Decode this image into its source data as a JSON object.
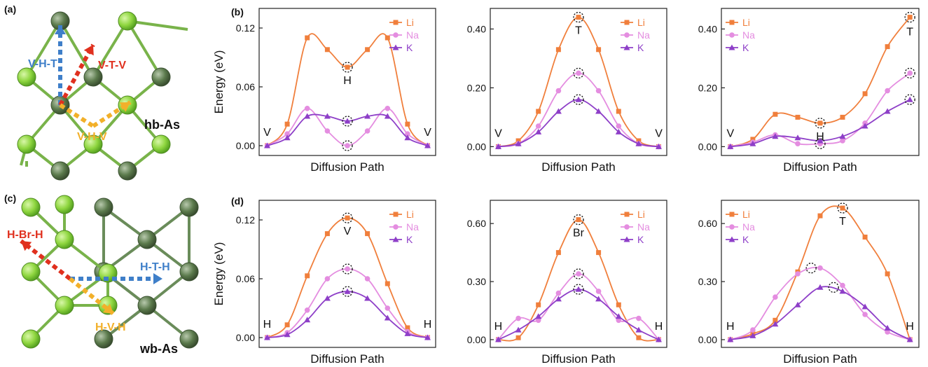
{
  "figure": {
    "panel_letters": [
      "(a)",
      "(b)",
      "(c)",
      "(d)"
    ],
    "structures": [
      {
        "name": "hb-As",
        "paths": [
          "V-H-T",
          "V-T-V",
          "V-H-V"
        ]
      },
      {
        "name": "wb-As",
        "paths": [
          "H-Br-H",
          "H-T-H",
          "H-V-H"
        ]
      }
    ]
  },
  "colors": {
    "Li": "#f07f3c",
    "Na": "#e48de0",
    "K": "#8e3fc8",
    "path_blue": "#3f7fc9",
    "path_red": "#e0301e",
    "path_yellow": "#f2b02a",
    "atom_light": "#8fd640",
    "atom_dark": "#5b7a4c"
  },
  "chart_data": [
    {
      "type": "line",
      "panel": "(b)",
      "xlabel": "Diffusion Path",
      "ylabel": "Energy (eV)",
      "ylim": [
        -0.01,
        0.14
      ],
      "yticks": [
        "0.00",
        "0.06",
        "0.12"
      ],
      "ytick_values": [
        0,
        0.06,
        0.12
      ],
      "legend": [
        "Li",
        "Na",
        "K"
      ],
      "legend_position": "top-right",
      "x": [
        0,
        1,
        2,
        3,
        4,
        5,
        6,
        7,
        8
      ],
      "series": [
        {
          "name": "Li",
          "values": [
            0.0,
            0.022,
            0.11,
            0.098,
            0.08,
            0.098,
            0.11,
            0.022,
            0.0
          ]
        },
        {
          "name": "Na",
          "values": [
            0.0,
            0.012,
            0.038,
            0.015,
            0.0,
            0.015,
            0.038,
            0.012,
            0.0
          ]
        },
        {
          "name": "K",
          "values": [
            0.0,
            0.008,
            0.03,
            0.03,
            0.025,
            0.03,
            0.03,
            0.008,
            0.0
          ]
        }
      ],
      "annotations": [
        {
          "text": "V",
          "x": 0,
          "y": 0.0
        },
        {
          "text": "H",
          "x": 4,
          "y": 0.08
        },
        {
          "text": "V",
          "x": 8,
          "y": 0.0
        }
      ],
      "circles": [
        {
          "x": 4,
          "y": 0.08
        },
        {
          "x": 4,
          "y": 0.025
        },
        {
          "x": 4,
          "y": 0.0
        }
      ]
    },
    {
      "type": "line",
      "panel": "b-middle",
      "xlabel": "Diffusion Path",
      "ylabel": "",
      "ylim": [
        -0.03,
        0.47
      ],
      "yticks": [
        "0.00",
        "0.20",
        "0.40"
      ],
      "ytick_values": [
        0,
        0.2,
        0.4
      ],
      "legend": [
        "Li",
        "Na",
        "K"
      ],
      "legend_position": "top-right",
      "x": [
        0,
        1,
        2,
        3,
        4,
        5,
        6,
        7,
        8
      ],
      "series": [
        {
          "name": "Li",
          "values": [
            0.0,
            0.02,
            0.12,
            0.33,
            0.44,
            0.33,
            0.12,
            0.02,
            0.0
          ]
        },
        {
          "name": "Na",
          "values": [
            0.0,
            0.01,
            0.07,
            0.19,
            0.25,
            0.19,
            0.07,
            0.01,
            0.0
          ]
        },
        {
          "name": "K",
          "values": [
            0.0,
            0.01,
            0.05,
            0.12,
            0.16,
            0.12,
            0.05,
            0.01,
            0.0
          ]
        }
      ],
      "annotations": [
        {
          "text": "V",
          "x": 0,
          "y": 0.0
        },
        {
          "text": "T",
          "x": 4,
          "y": 0.44
        },
        {
          "text": "V",
          "x": 8,
          "y": 0.0
        }
      ],
      "circles": [
        {
          "x": 4,
          "y": 0.44
        },
        {
          "x": 4,
          "y": 0.25
        },
        {
          "x": 4,
          "y": 0.16
        }
      ]
    },
    {
      "type": "line",
      "panel": "b-right",
      "xlabel": "Diffusion Path",
      "ylabel": "",
      "ylim": [
        -0.03,
        0.47
      ],
      "yticks": [
        "0.00",
        "0.20",
        "0.40"
      ],
      "ytick_values": [
        0,
        0.2,
        0.4
      ],
      "legend": [
        "Li",
        "Na",
        "K"
      ],
      "legend_position": "top-left",
      "x": [
        0,
        1,
        2,
        3,
        4,
        5,
        6,
        7,
        8
      ],
      "series": [
        {
          "name": "Li",
          "values": [
            0.0,
            0.025,
            0.11,
            0.1,
            0.08,
            0.1,
            0.18,
            0.34,
            0.44
          ]
        },
        {
          "name": "Na",
          "values": [
            0.0,
            0.015,
            0.04,
            0.01,
            0.01,
            0.02,
            0.08,
            0.19,
            0.25
          ]
        },
        {
          "name": "K",
          "values": [
            0.0,
            0.01,
            0.035,
            0.03,
            0.02,
            0.035,
            0.07,
            0.12,
            0.16
          ]
        }
      ],
      "annotations": [
        {
          "text": "V",
          "x": 0,
          "y": 0.0
        },
        {
          "text": "H",
          "x": 4,
          "y": 0.08
        },
        {
          "text": "T",
          "x": 8,
          "y": 0.44
        }
      ],
      "circles": [
        {
          "x": 4,
          "y": 0.08
        },
        {
          "x": 4,
          "y": 0.01
        },
        {
          "x": 8,
          "y": 0.44
        },
        {
          "x": 8,
          "y": 0.25
        },
        {
          "x": 8,
          "y": 0.16
        }
      ]
    },
    {
      "type": "line",
      "panel": "(d)",
      "xlabel": "Diffusion Path",
      "ylabel": "Energy (eV)",
      "ylim": [
        -0.01,
        0.14
      ],
      "yticks": [
        "0.00",
        "0.06",
        "0.12"
      ],
      "ytick_values": [
        0,
        0.06,
        0.12
      ],
      "legend": [
        "Li",
        "Na",
        "K"
      ],
      "legend_position": "top-right",
      "x": [
        0,
        1,
        2,
        3,
        4,
        5,
        6,
        7,
        8
      ],
      "series": [
        {
          "name": "Li",
          "values": [
            0.0,
            0.013,
            0.063,
            0.106,
            0.122,
            0.106,
            0.055,
            0.01,
            0.0
          ]
        },
        {
          "name": "Na",
          "values": [
            0.0,
            0.005,
            0.028,
            0.06,
            0.07,
            0.06,
            0.03,
            0.006,
            0.0
          ]
        },
        {
          "name": "K",
          "values": [
            0.0,
            0.003,
            0.018,
            0.04,
            0.047,
            0.04,
            0.02,
            0.004,
            0.0
          ]
        }
      ],
      "annotations": [
        {
          "text": "H",
          "x": 0,
          "y": 0.0
        },
        {
          "text": "V",
          "x": 4,
          "y": 0.122
        },
        {
          "text": "H",
          "x": 8,
          "y": 0.0
        }
      ],
      "circles": [
        {
          "x": 4,
          "y": 0.122
        },
        {
          "x": 4,
          "y": 0.07
        },
        {
          "x": 4,
          "y": 0.047
        }
      ]
    },
    {
      "type": "line",
      "panel": "d-middle",
      "xlabel": "Diffusion Path",
      "ylabel": "",
      "ylim": [
        -0.04,
        0.72
      ],
      "yticks": [
        "0.00",
        "0.30",
        "0.60"
      ],
      "ytick_values": [
        0,
        0.3,
        0.6
      ],
      "legend": [
        "Li",
        "Na",
        "K"
      ],
      "legend_position": "top-right",
      "x": [
        0,
        1,
        2,
        3,
        4,
        5,
        6,
        7,
        8
      ],
      "series": [
        {
          "name": "Li",
          "values": [
            0.0,
            0.01,
            0.18,
            0.45,
            0.62,
            0.45,
            0.18,
            0.01,
            0.0
          ]
        },
        {
          "name": "Na",
          "values": [
            0.0,
            0.11,
            0.1,
            0.24,
            0.34,
            0.25,
            0.1,
            0.11,
            0.0
          ]
        },
        {
          "name": "K",
          "values": [
            0.0,
            0.05,
            0.12,
            0.21,
            0.26,
            0.21,
            0.12,
            0.05,
            0.0
          ]
        }
      ],
      "annotations": [
        {
          "text": "H",
          "x": 0,
          "y": 0.0
        },
        {
          "text": "Br",
          "x": 4,
          "y": 0.62
        },
        {
          "text": "H",
          "x": 8,
          "y": 0.0
        }
      ],
      "circles": [
        {
          "x": 4,
          "y": 0.62
        },
        {
          "x": 4,
          "y": 0.34
        },
        {
          "x": 4,
          "y": 0.26
        }
      ]
    },
    {
      "type": "line",
      "panel": "d-right",
      "xlabel": "Diffusion Path",
      "ylabel": "",
      "ylim": [
        -0.04,
        0.72
      ],
      "yticks": [
        "0.00",
        "0.30",
        "0.60"
      ],
      "ytick_values": [
        0,
        0.3,
        0.6
      ],
      "legend": [
        "Li",
        "Na",
        "K"
      ],
      "legend_position": "top-left",
      "x": [
        0,
        1,
        2,
        3,
        4,
        5,
        6,
        7,
        8
      ],
      "series": [
        {
          "name": "Li",
          "values": [
            0.0,
            0.03,
            0.1,
            0.35,
            0.64,
            0.68,
            0.53,
            0.34,
            0.0
          ]
        },
        {
          "name": "Na",
          "values": [
            0.0,
            0.05,
            0.22,
            0.34,
            0.37,
            0.28,
            0.13,
            0.04,
            0.0
          ]
        },
        {
          "name": "K",
          "values": [
            0.0,
            0.02,
            0.08,
            0.18,
            0.27,
            0.25,
            0.17,
            0.06,
            0.0
          ]
        }
      ],
      "annotations": [
        {
          "text": "H",
          "x": 0,
          "y": 0.0
        },
        {
          "text": "T",
          "x": 5,
          "y": 0.68
        },
        {
          "text": "H",
          "x": 8,
          "y": 0.0
        }
      ],
      "circles": [
        {
          "x": 5,
          "y": 0.68
        },
        {
          "x": 3.6,
          "y": 0.37
        },
        {
          "x": 4.6,
          "y": 0.27
        }
      ]
    }
  ]
}
